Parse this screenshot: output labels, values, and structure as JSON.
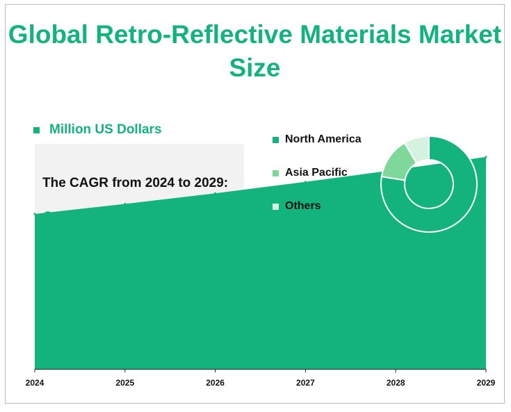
{
  "title": "Global Retro-Reflective Materials Market Size",
  "unit_label": "Million US Dollars",
  "cagr": {
    "label": "The CAGR from 2024 to 2029:",
    "value": "6.47%"
  },
  "colors": {
    "accent": "#14b37d",
    "asia_pacific": "#7dd89a",
    "others": "#d4f2df",
    "cagr_box": "#f2f2f2"
  },
  "chart_data": [
    {
      "type": "area",
      "x": [
        "2024",
        "2025",
        "2026",
        "2027",
        "2028",
        "2029"
      ],
      "series": [
        {
          "values": [
            6398.15,
            6812.4,
            7253.2,
            7722.5,
            8222.2,
            8754.2
          ]
        }
      ],
      "data_labels": [
        {
          "x": "2024",
          "text": "6398.15"
        }
      ],
      "ylim": [
        0,
        10500
      ],
      "grid": false
    },
    {
      "type": "pie",
      "donut": true,
      "legend_position": "left",
      "slices": [
        {
          "name": "North America",
          "value": 77.5,
          "color": "#14b37d"
        },
        {
          "name": "Asia Pacific",
          "value": 14.0,
          "color": "#7dd89a"
        },
        {
          "name": "Others",
          "value": 8.5,
          "color": "#d4f2df"
        }
      ]
    }
  ]
}
